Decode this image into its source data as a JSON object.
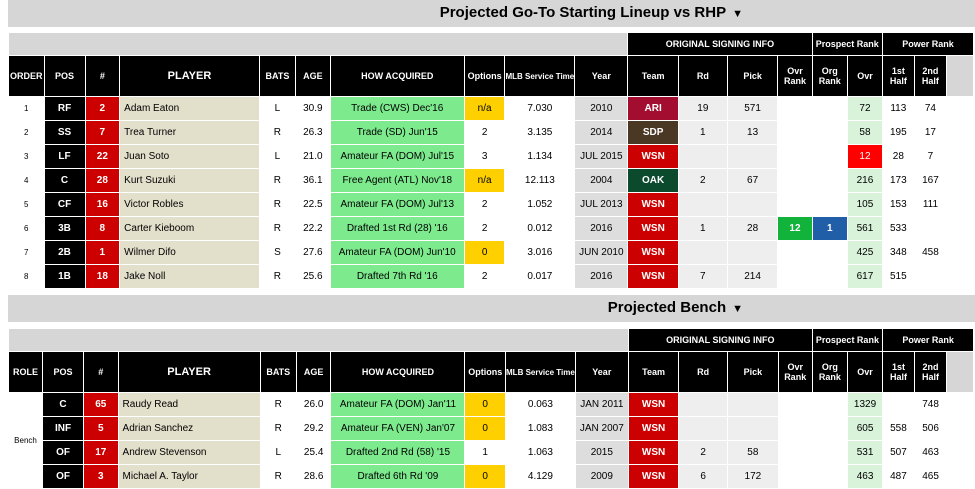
{
  "starting_title": "Projected Go-To Starting Lineup vs RHP",
  "bench_title": "Projected Bench",
  "arrow": "▼",
  "groups": {
    "original_signing_info": "ORIGINAL SIGNING INFO",
    "prospect_rank": "Prospect Rank",
    "power_rank": "Power Rank"
  },
  "headers": {
    "order": "ORDER",
    "role": "ROLE",
    "pos": "POS",
    "num": "#",
    "player": "PLAYER",
    "bats": "BATS",
    "age": "AGE",
    "how_acquired": "HOW ACQUIRED",
    "options": "Options",
    "mlb_service_time": "MLB Service Time",
    "year": "Year",
    "team": "Team",
    "rd": "Rd",
    "pick": "Pick",
    "ovr_rank": "Ovr Rank",
    "org_rank": "Org Rank",
    "ovr": "Ovr",
    "first_half": "1st Half",
    "second_half": "2nd Half"
  },
  "starters": [
    {
      "order": "1",
      "pos": "RF",
      "num": "2",
      "player": "Adam Eaton",
      "bats": "L",
      "age": "30.9",
      "acq": "Trade (CWS) Dec'16",
      "options": "n/a",
      "mst": "7.030",
      "year": "2010",
      "team": "ARI",
      "team_color": "ari",
      "rd": "19",
      "pick": "571",
      "ovr_rank": "",
      "org_rank": "",
      "ovr": "72",
      "h1": "113",
      "h2": "74"
    },
    {
      "order": "2",
      "pos": "SS",
      "num": "7",
      "player": "Trea Turner",
      "bats": "R",
      "age": "26.3",
      "acq": "Trade (SD) Jun'15",
      "options": "2",
      "mst": "3.135",
      "year": "2014",
      "team": "SDP",
      "team_color": "sdp",
      "rd": "1",
      "pick": "13",
      "ovr_rank": "",
      "org_rank": "",
      "ovr": "58",
      "h1": "195",
      "h2": "17"
    },
    {
      "order": "3",
      "pos": "LF",
      "num": "22",
      "player": "Juan Soto",
      "bats": "L",
      "age": "21.0",
      "acq": "Amateur FA (DOM) Jul'15",
      "options": "3",
      "mst": "1.134",
      "year": "JUL 2015",
      "team": "WSN",
      "team_color": "wsn",
      "rd": "",
      "pick": "",
      "ovr_rank": "",
      "org_rank": "",
      "ovr": "12",
      "h1": "28",
      "h2": "7"
    },
    {
      "order": "4",
      "pos": "C",
      "num": "28",
      "player": "Kurt Suzuki",
      "bats": "R",
      "age": "36.1",
      "acq": "Free Agent (ATL) Nov'18",
      "options": "n/a",
      "mst": "12.113",
      "year": "2004",
      "team": "OAK",
      "team_color": "oak",
      "rd": "2",
      "pick": "67",
      "ovr_rank": "",
      "org_rank": "",
      "ovr": "216",
      "h1": "173",
      "h2": "167"
    },
    {
      "order": "5",
      "pos": "CF",
      "num": "16",
      "player": "Victor Robles",
      "bats": "R",
      "age": "22.5",
      "acq": "Amateur FA (DOM) Jul'13",
      "options": "2",
      "mst": "1.052",
      "year": "JUL 2013",
      "team": "WSN",
      "team_color": "wsn",
      "rd": "",
      "pick": "",
      "ovr_rank": "",
      "org_rank": "",
      "ovr": "105",
      "h1": "153",
      "h2": "111"
    },
    {
      "order": "6",
      "pos": "3B",
      "num": "8",
      "player": "Carter Kieboom",
      "bats": "R",
      "age": "22.2",
      "acq": "Drafted 1st Rd (28) '16",
      "options": "2",
      "mst": "0.012",
      "year": "2016",
      "team": "WSN",
      "team_color": "wsn",
      "rd": "1",
      "pick": "28",
      "ovr_rank": "12",
      "org_rank": "1",
      "ovr": "561",
      "h1": "533",
      "h2": ""
    },
    {
      "order": "7",
      "pos": "2B",
      "num": "1",
      "player": "Wilmer Difo",
      "bats": "S",
      "age": "27.6",
      "acq": "Amateur FA (DOM) Jun'10",
      "options": "0",
      "mst": "3.016",
      "year": "JUN 2010",
      "team": "WSN",
      "team_color": "wsn",
      "rd": "",
      "pick": "",
      "ovr_rank": "",
      "org_rank": "",
      "ovr": "425",
      "h1": "348",
      "h2": "458"
    },
    {
      "order": "8",
      "pos": "1B",
      "num": "18",
      "player": "Jake Noll",
      "bats": "R",
      "age": "25.6",
      "acq": "Drafted 7th Rd '16",
      "options": "2",
      "mst": "0.017",
      "year": "2016",
      "team": "WSN",
      "team_color": "wsn",
      "rd": "7",
      "pick": "214",
      "ovr_rank": "",
      "org_rank": "",
      "ovr": "617",
      "h1": "515",
      "h2": ""
    }
  ],
  "bench_role": "Bench",
  "bench": [
    {
      "pos": "C",
      "num": "65",
      "player": "Raudy Read",
      "bats": "R",
      "age": "26.0",
      "acq": "Amateur FA (DOM) Jan'11",
      "options": "0",
      "mst": "0.063",
      "year": "JAN 2011",
      "team": "WSN",
      "team_color": "wsn",
      "rd": "",
      "pick": "",
      "ovr_rank": "",
      "org_rank": "",
      "ovr": "1329",
      "h1": "",
      "h2": "748"
    },
    {
      "pos": "INF",
      "num": "5",
      "player": "Adrian Sanchez",
      "bats": "R",
      "age": "29.2",
      "acq": "Amateur FA (VEN) Jan'07",
      "options": "0",
      "mst": "1.083",
      "year": "JAN 2007",
      "team": "WSN",
      "team_color": "wsn",
      "rd": "",
      "pick": "",
      "ovr_rank": "",
      "org_rank": "",
      "ovr": "605",
      "h1": "558",
      "h2": "506"
    },
    {
      "pos": "OF",
      "num": "17",
      "player": "Andrew Stevenson",
      "bats": "L",
      "age": "25.4",
      "acq": "Drafted 2nd Rd (58) '15",
      "options": "1",
      "mst": "1.063",
      "year": "2015",
      "team": "WSN",
      "team_color": "wsn",
      "rd": "2",
      "pick": "58",
      "ovr_rank": "",
      "org_rank": "",
      "ovr": "531",
      "h1": "507",
      "h2": "463"
    },
    {
      "pos": "OF",
      "num": "3",
      "player": "Michael A. Taylor",
      "bats": "R",
      "age": "28.6",
      "acq": "Drafted 6th Rd '09",
      "options": "0",
      "mst": "4.129",
      "year": "2009",
      "team": "WSN",
      "team_color": "wsn",
      "rd": "6",
      "pick": "172",
      "ovr_rank": "",
      "org_rank": "",
      "ovr": "463",
      "h1": "487",
      "h2": "465"
    }
  ]
}
